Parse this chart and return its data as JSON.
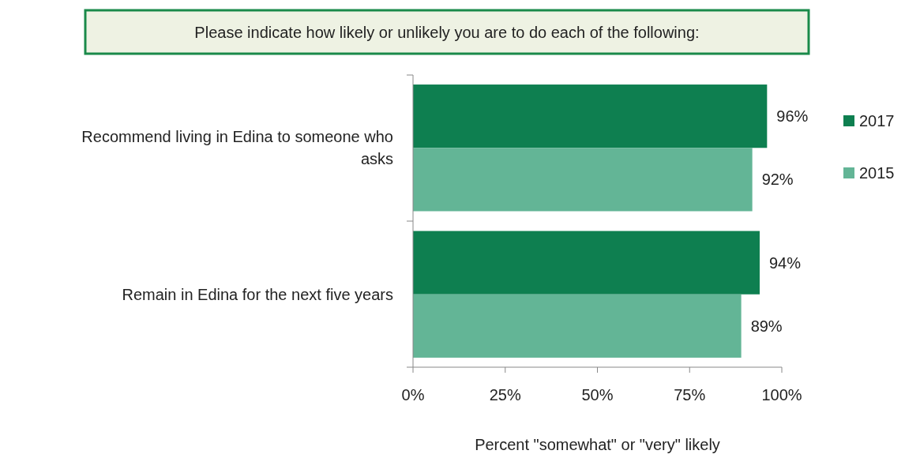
{
  "chart_data": {
    "type": "bar",
    "orientation": "horizontal",
    "title": "Please indicate how likely or unlikely you are to do each of the following:",
    "xlabel": "Percent \"somewhat\" or \"very\" likely",
    "categories": [
      "Recommend living in Edina to someone who asks",
      "Remain in Edina for the next five years"
    ],
    "series": [
      {
        "name": "2017",
        "color": "#0e7f50",
        "values": [
          96,
          94
        ],
        "value_labels": [
          "96%",
          "94%"
        ]
      },
      {
        "name": "2015",
        "color": "#63b596",
        "values": [
          92,
          89
        ],
        "value_labels": [
          "92%",
          "89%"
        ]
      }
    ],
    "xlim": [
      0,
      100
    ],
    "xticks": [
      {
        "value": 0,
        "label": "0%"
      },
      {
        "value": 25,
        "label": "25%"
      },
      {
        "value": 50,
        "label": "50%"
      },
      {
        "value": 75,
        "label": "75%"
      },
      {
        "value": 100,
        "label": "100%"
      }
    ],
    "legend": "right",
    "grid": false
  }
}
